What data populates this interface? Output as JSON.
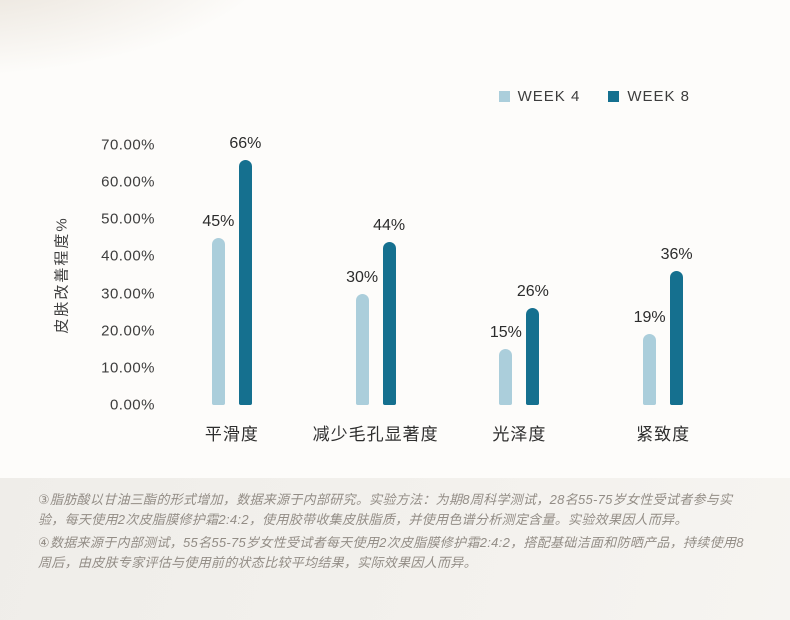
{
  "chart_data": {
    "type": "bar",
    "categories": [
      "平滑度",
      "减少毛孔显著度",
      "光泽度",
      "紧致度"
    ],
    "series": [
      {
        "name": "WEEK 4",
        "color": "#abcedb",
        "values": [
          45,
          30,
          15,
          19
        ]
      },
      {
        "name": "WEEK 8",
        "color": "#15708f",
        "values": [
          66,
          44,
          26,
          36
        ]
      }
    ],
    "data_label_suffix": "%",
    "title": "",
    "xlabel": "",
    "ylabel": "皮肤改善程度%",
    "ylim": [
      0,
      70
    ],
    "yticks": [
      "70.00%",
      "60.00%",
      "50.00%",
      "40.00%",
      "30.00%",
      "20.00%",
      "10.00%",
      "0.00%"
    ],
    "grid": false,
    "legend_position": "top-right"
  },
  "footnotes": {
    "note3": "③脂肪酸以甘油三酯的形式增加，数据来源于内部研究。实验方法：为期8周科学测试，28名55-75岁女性受试者参与实验，每天使用2次皮脂膜修护霜2:4:2，使用胶带收集皮肤脂质，并使用色谱分析测定含量。实验效果因人而异。",
    "note4": "④数据来源于内部测试，55名55-75岁女性受试者每天使用2次皮脂膜修护霜2:4:2，搭配基础洁面和防晒产品，持续使用8周后，由皮肤专家评估与使用前的状态比较平均结果，实际效果因人而异。"
  }
}
